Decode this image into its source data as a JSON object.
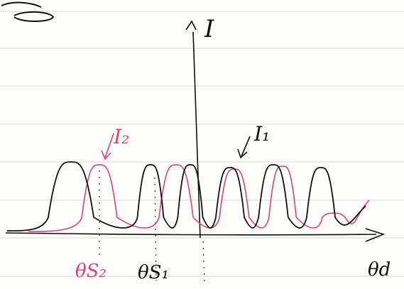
{
  "labels": {
    "y_axis": "I",
    "curve_2": "I₂",
    "curve_1": "I₁",
    "theta_s2": "θS₂",
    "theta_s1": "θS₁",
    "x_axis": "θd"
  }
}
